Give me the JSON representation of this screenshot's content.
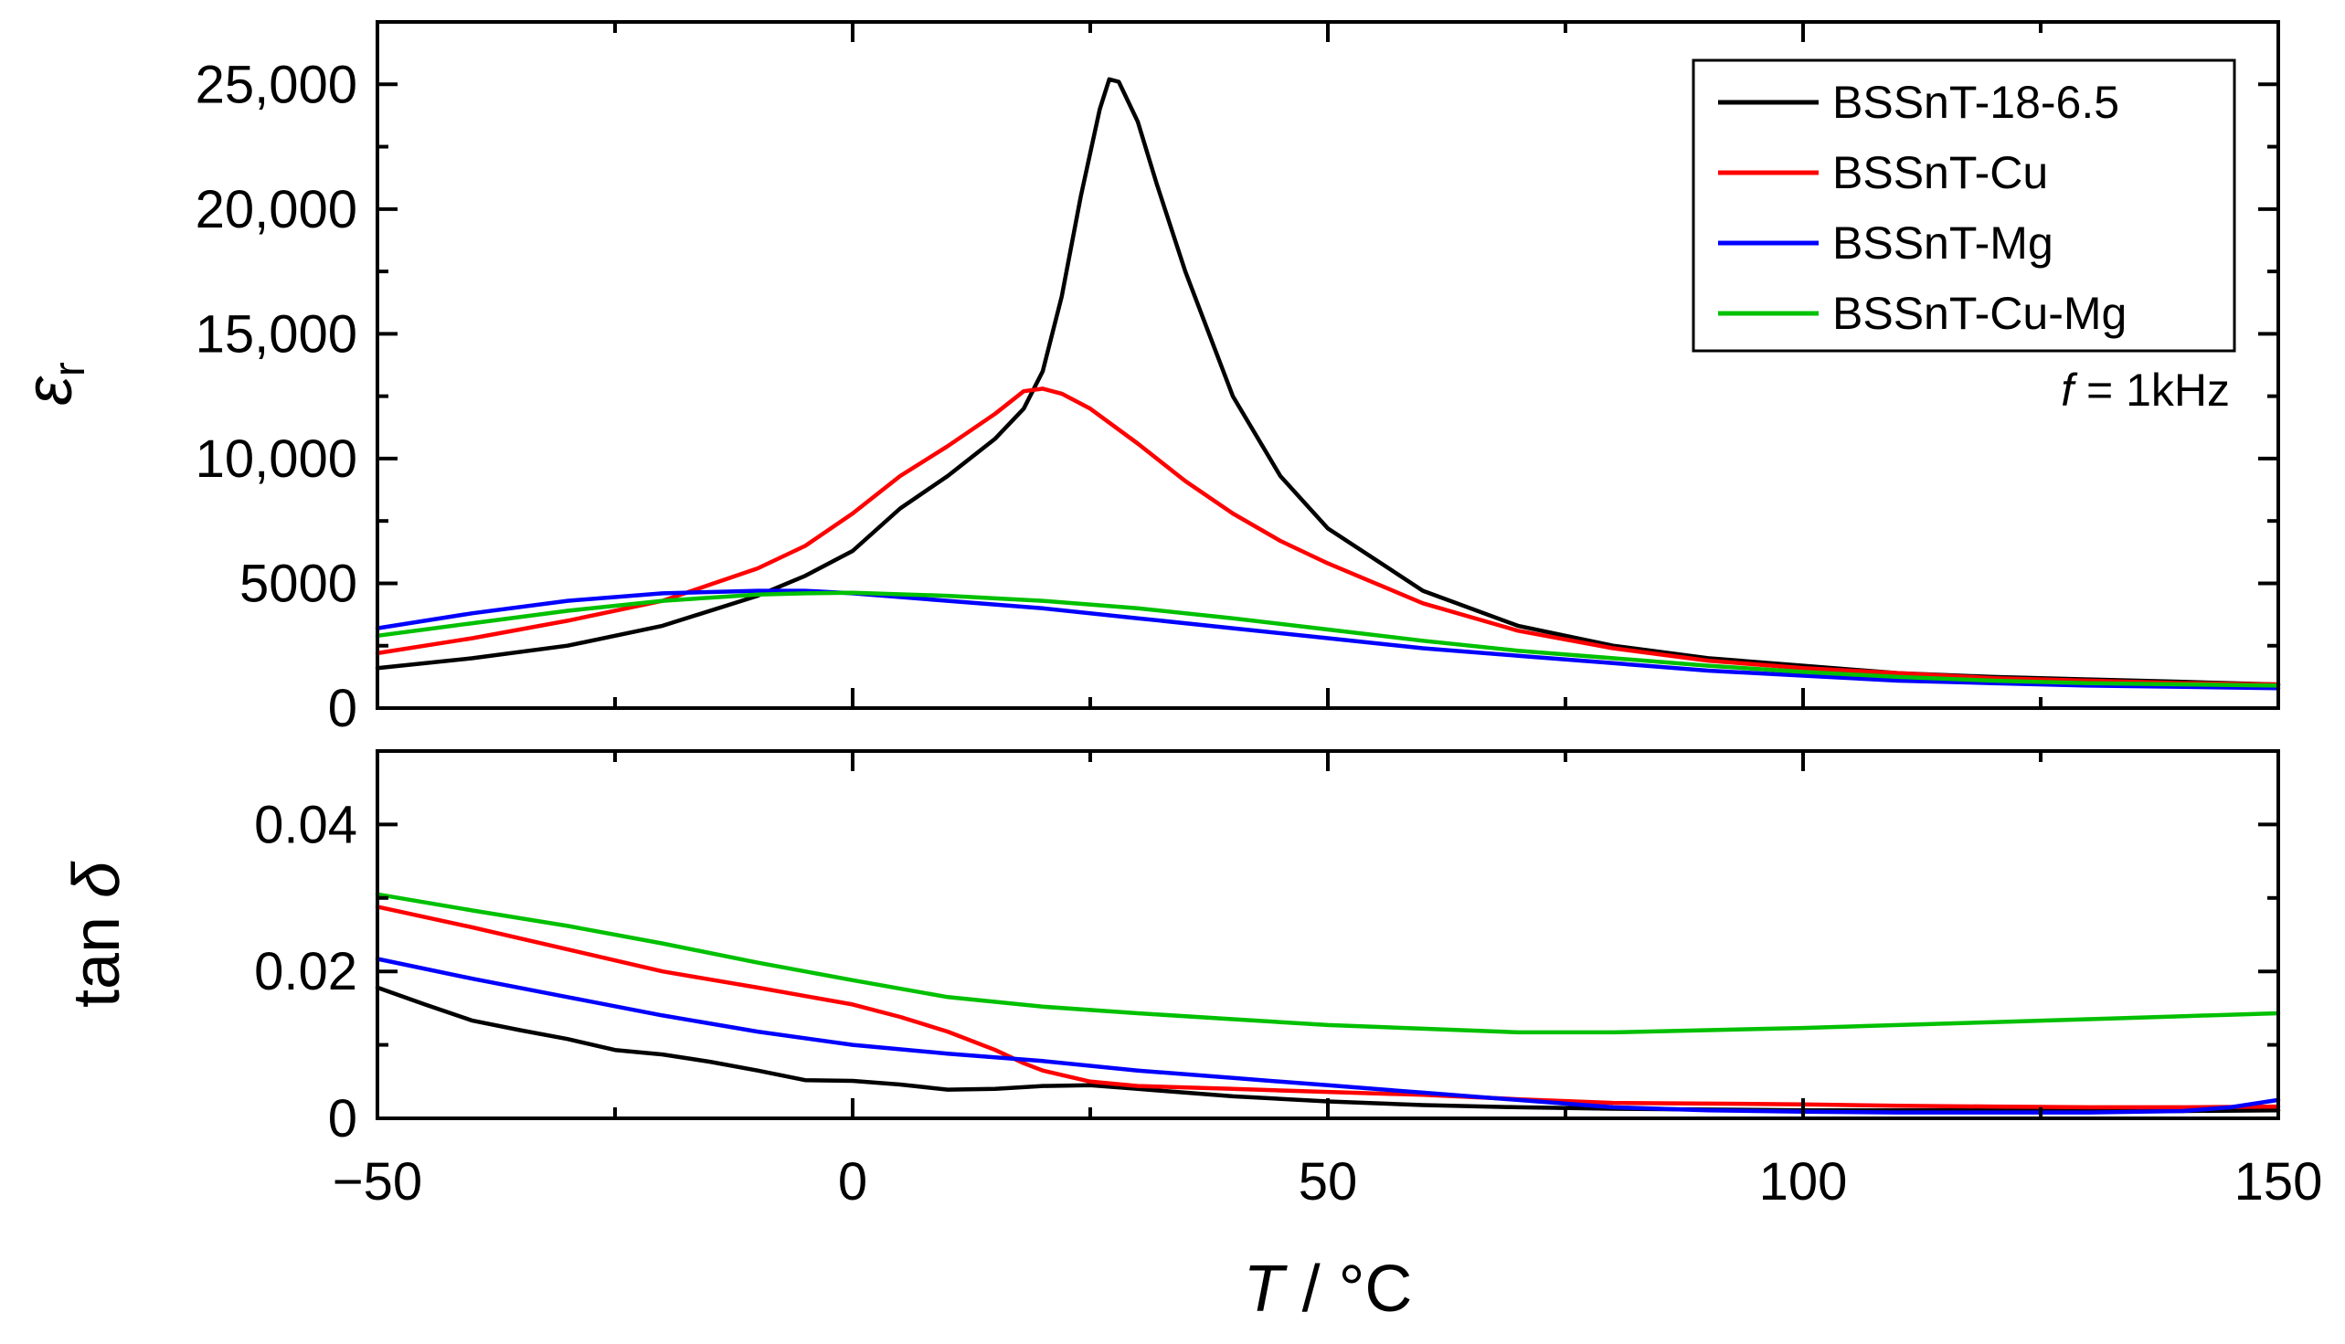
{
  "chart_data": [
    {
      "type": "line",
      "panel": "top",
      "ylabel": "εr",
      "ylim": [
        0,
        27500
      ],
      "yticks": [
        0,
        5000,
        10000,
        15000,
        20000,
        25000
      ],
      "ytick_labels": [
        "0",
        "5000",
        "10,000",
        "15,000",
        "20,000",
        "25,000"
      ],
      "annotation_prefix": "f",
      "annotation_suffix": " = 1kHz",
      "legend_position": "top-right",
      "series": [
        {
          "name": "BSSnT-18-6.5",
          "color": "#000000",
          "x": [
            -50,
            -40,
            -30,
            -20,
            -10,
            -5,
            0,
            5,
            10,
            15,
            18,
            20,
            22,
            24,
            26,
            27,
            28,
            30,
            32,
            35,
            40,
            45,
            50,
            60,
            70,
            80,
            90,
            100,
            110,
            120,
            130,
            140,
            150
          ],
          "y": [
            1600,
            2000,
            2500,
            3300,
            4500,
            5300,
            6300,
            8000,
            9300,
            10800,
            12000,
            13500,
            16500,
            20500,
            24000,
            25200,
            25100,
            23500,
            21000,
            17500,
            12500,
            9300,
            7200,
            4700,
            3300,
            2500,
            2000,
            1700,
            1400,
            1250,
            1150,
            1050,
            950
          ]
        },
        {
          "name": "BSSnT-Cu",
          "color": "#ff0000",
          "x": [
            -50,
            -40,
            -30,
            -20,
            -10,
            -5,
            0,
            5,
            10,
            15,
            18,
            20,
            22,
            25,
            30,
            35,
            40,
            45,
            50,
            60,
            70,
            80,
            90,
            100,
            110,
            120,
            130,
            140,
            150
          ],
          "y": [
            2200,
            2800,
            3500,
            4300,
            5600,
            6500,
            7800,
            9300,
            10500,
            11800,
            12700,
            12800,
            12600,
            12000,
            10600,
            9100,
            7800,
            6700,
            5800,
            4200,
            3100,
            2400,
            1900,
            1600,
            1400,
            1200,
            1100,
            1000,
            950
          ]
        },
        {
          "name": "BSSnT-Mg",
          "color": "#0000ff",
          "x": [
            -50,
            -40,
            -30,
            -20,
            -10,
            -5,
            0,
            10,
            20,
            30,
            40,
            50,
            60,
            70,
            80,
            90,
            100,
            110,
            120,
            130,
            140,
            150
          ],
          "y": [
            3200,
            3800,
            4300,
            4600,
            4700,
            4700,
            4600,
            4300,
            4000,
            3600,
            3200,
            2800,
            2400,
            2100,
            1800,
            1500,
            1300,
            1100,
            1000,
            900,
            850,
            800
          ]
        },
        {
          "name": "BSSnT-Cu-Mg",
          "color": "#00c000",
          "x": [
            -50,
            -40,
            -30,
            -20,
            -10,
            -5,
            0,
            10,
            20,
            30,
            40,
            50,
            60,
            70,
            80,
            90,
            100,
            110,
            120,
            130,
            140,
            150
          ],
          "y": [
            2900,
            3400,
            3900,
            4300,
            4550,
            4600,
            4620,
            4500,
            4300,
            4000,
            3600,
            3150,
            2700,
            2300,
            2000,
            1700,
            1450,
            1250,
            1100,
            1000,
            950,
            900
          ]
        }
      ]
    },
    {
      "type": "line",
      "panel": "bottom",
      "ylabel_prefix": "tan ",
      "ylabel_symbol": "δ",
      "xlabel_var": "T",
      "xlabel_unit": " / °C",
      "xlim": [
        -50,
        150
      ],
      "ylim": [
        0,
        0.05
      ],
      "xticks": [
        -50,
        0,
        50,
        100,
        150
      ],
      "xtick_labels": [
        "−50",
        "0",
        "50",
        "100",
        "150"
      ],
      "yticks": [
        0,
        0.02,
        0.04
      ],
      "ytick_labels": [
        "0",
        "0.02",
        "0.04"
      ],
      "series": [
        {
          "name": "BSSnT-18-6.5",
          "color": "#000000",
          "x": [
            -50,
            -45,
            -40,
            -35,
            -30,
            -25,
            -20,
            -15,
            -10,
            -5,
            0,
            5,
            10,
            15,
            20,
            25,
            30,
            40,
            50,
            60,
            70,
            80,
            90,
            100,
            110,
            120,
            130,
            140,
            150
          ],
          "y": [
            0.0178,
            0.0155,
            0.0133,
            0.012,
            0.0108,
            0.0093,
            0.0087,
            0.0077,
            0.0065,
            0.0052,
            0.0051,
            0.0046,
            0.0039,
            0.004,
            0.0044,
            0.0045,
            0.004,
            0.003,
            0.0023,
            0.0018,
            0.0015,
            0.0013,
            0.0012,
            0.0011,
            0.0011,
            0.0011,
            0.001,
            0.001,
            0.0011
          ]
        },
        {
          "name": "BSSnT-Cu",
          "color": "#ff0000",
          "x": [
            -50,
            -40,
            -30,
            -20,
            -10,
            0,
            5,
            10,
            15,
            18,
            20,
            25,
            30,
            40,
            50,
            60,
            70,
            80,
            90,
            100,
            110,
            120,
            130,
            140,
            150
          ],
          "y": [
            0.0288,
            0.026,
            0.023,
            0.02,
            0.0178,
            0.0155,
            0.0138,
            0.0118,
            0.0093,
            0.0075,
            0.0065,
            0.005,
            0.0044,
            0.004,
            0.0036,
            0.0032,
            0.0026,
            0.0021,
            0.002,
            0.0019,
            0.0017,
            0.0016,
            0.0015,
            0.0015,
            0.0016
          ]
        },
        {
          "name": "BSSnT-Mg",
          "color": "#0000ff",
          "x": [
            -50,
            -40,
            -30,
            -20,
            -10,
            0,
            10,
            20,
            30,
            40,
            50,
            60,
            70,
            80,
            90,
            100,
            110,
            120,
            130,
            140,
            145,
            150
          ],
          "y": [
            0.0217,
            0.019,
            0.0165,
            0.014,
            0.0118,
            0.01,
            0.0088,
            0.0078,
            0.0065,
            0.0055,
            0.0045,
            0.0035,
            0.0025,
            0.0015,
            0.0011,
            0.0009,
            0.0008,
            0.0008,
            0.0008,
            0.001,
            0.0015,
            0.0025
          ]
        },
        {
          "name": "BSSnT-Cu-Mg",
          "color": "#00c000",
          "x": [
            -50,
            -40,
            -30,
            -20,
            -10,
            0,
            10,
            20,
            30,
            40,
            50,
            60,
            70,
            80,
            90,
            100,
            110,
            120,
            130,
            140,
            150
          ],
          "y": [
            0.0305,
            0.0283,
            0.0262,
            0.0238,
            0.0212,
            0.0188,
            0.0165,
            0.0152,
            0.0143,
            0.0135,
            0.0127,
            0.0122,
            0.0117,
            0.0117,
            0.012,
            0.0123,
            0.0127,
            0.0131,
            0.0135,
            0.0139,
            0.0143
          ]
        }
      ]
    }
  ]
}
